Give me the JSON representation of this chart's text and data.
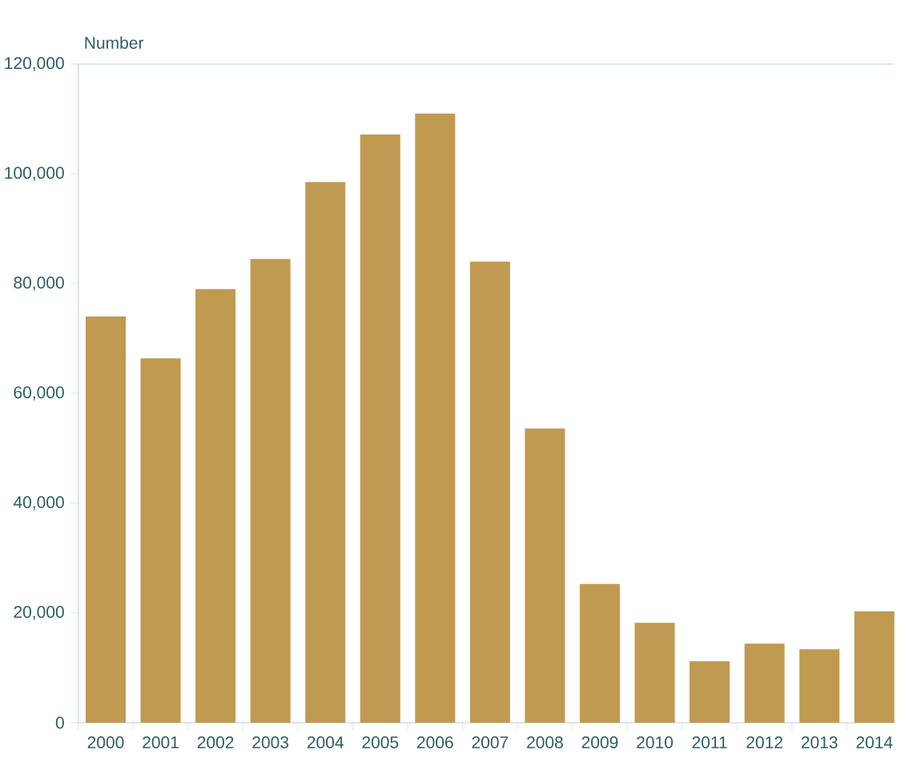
{
  "chart_data": {
    "type": "bar",
    "ylabel": "Number",
    "categories": [
      "2000",
      "2001",
      "2002",
      "2003",
      "2004",
      "2005",
      "2006",
      "2007",
      "2008",
      "2009",
      "2010",
      "2011",
      "2012",
      "2013",
      "2014"
    ],
    "values": [
      74000,
      66400,
      79000,
      84500,
      98500,
      107200,
      111000,
      84000,
      53600,
      25300,
      18200,
      11200,
      14400,
      13400,
      20300
    ],
    "color": "#c19a51",
    "ylim": [
      0,
      120000
    ],
    "yticks": [
      {
        "value": 0,
        "label": "0"
      },
      {
        "value": 20000,
        "label": "20,000"
      },
      {
        "value": 40000,
        "label": "40,000"
      },
      {
        "value": 60000,
        "label": "60,000"
      },
      {
        "value": 80000,
        "label": "80,000"
      },
      {
        "value": 100000,
        "label": "100,000"
      },
      {
        "value": 120000,
        "label": "120,000"
      }
    ],
    "grid": false
  }
}
